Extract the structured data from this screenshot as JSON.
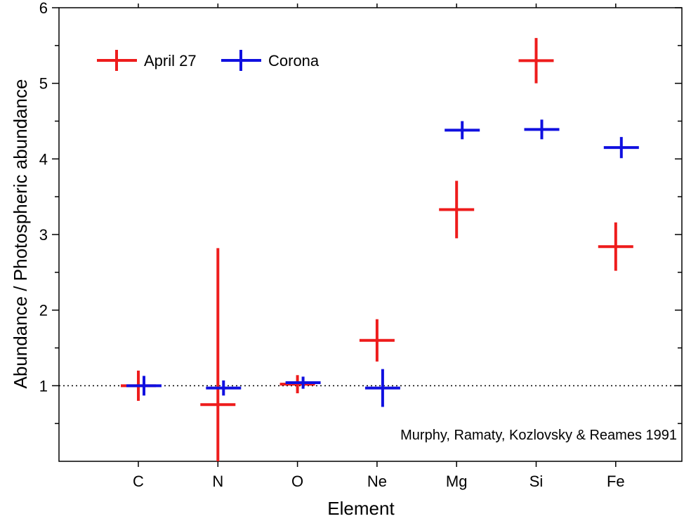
{
  "chart_data": {
    "type": "scatter",
    "xlabel": "Element",
    "ylabel": "Abundance / Photospheric abundance",
    "categories": [
      "C",
      "N",
      "O",
      "Ne",
      "Mg",
      "Si",
      "Fe"
    ],
    "ylim": [
      0,
      6
    ],
    "yticks": [
      "1",
      "2",
      "3",
      "4",
      "5",
      "6"
    ],
    "reference_line": {
      "y": 1,
      "style": "dotted"
    },
    "annotation": "Murphy, Ramaty, Kozlovsky & Reames 1991",
    "legend_position": "top-left",
    "grid": false,
    "series": [
      {
        "name": "April 27",
        "color": "#ee1c1c",
        "points": [
          {
            "category": "C",
            "y": 1.0,
            "err": 0.2
          },
          {
            "category": "N",
            "y": 0.75,
            "err": 2.07
          },
          {
            "category": "O",
            "y": 1.02,
            "err": 0.12
          },
          {
            "category": "Ne",
            "y": 1.6,
            "err": 0.28
          },
          {
            "category": "Mg",
            "y": 3.33,
            "err": 0.38
          },
          {
            "category": "Si",
            "y": 5.3,
            "err": 0.3
          },
          {
            "category": "Fe",
            "y": 2.84,
            "err": 0.32
          }
        ]
      },
      {
        "name": "Corona",
        "color": "#1010e0",
        "points": [
          {
            "category": "C",
            "y": 1.0,
            "err": 0.13
          },
          {
            "category": "N",
            "y": 0.97,
            "err": 0.1
          },
          {
            "category": "O",
            "y": 1.04,
            "err": 0.08
          },
          {
            "category": "Ne",
            "y": 0.97,
            "err": 0.25
          },
          {
            "category": "Mg",
            "y": 4.38,
            "err": 0.12
          },
          {
            "category": "Si",
            "y": 4.39,
            "err": 0.13
          },
          {
            "category": "Fe",
            "y": 4.15,
            "err": 0.14
          }
        ]
      }
    ]
  }
}
